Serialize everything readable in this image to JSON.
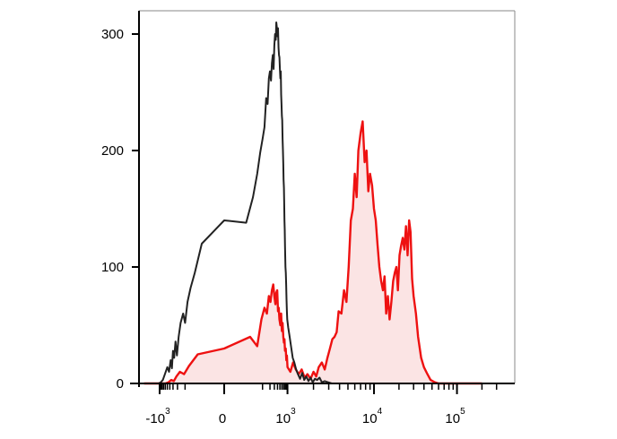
{
  "chart_data": {
    "type": "area",
    "title": "",
    "xlabel": "",
    "ylabel": "",
    "x_scale": "biexponential",
    "ylim": [
      0,
      320
    ],
    "grid": false,
    "legend": "none",
    "y_ticks": [
      {
        "value": 0,
        "label": "0"
      },
      {
        "value": 100,
        "label": "100"
      },
      {
        "value": 200,
        "label": "200"
      },
      {
        "value": 300,
        "label": "300"
      }
    ],
    "x_ticks": [
      {
        "value": -1000,
        "base": "-10",
        "exp": "3"
      },
      {
        "value": 0,
        "base": "0",
        "exp": ""
      },
      {
        "value": 1000,
        "base": "10",
        "exp": "3"
      },
      {
        "value": 10000,
        "base": "10",
        "exp": "4"
      },
      {
        "value": 100000,
        "base": "10",
        "exp": "5"
      }
    ],
    "series": [
      {
        "color": "#222222",
        "fill": "none",
        "x": [
          -4000,
          -2500,
          -1800,
          -1400,
          -1100,
          -900,
          -750,
          -620,
          -500,
          -430,
          -370,
          -330,
          -300,
          -270,
          -240,
          -210,
          -180,
          -150,
          -120,
          -100,
          -80,
          -60,
          -40,
          -20,
          0,
          20,
          40,
          60,
          80,
          100,
          120,
          140,
          160,
          180,
          200,
          220,
          240,
          260,
          280,
          300,
          320,
          340,
          360,
          380,
          400,
          420,
          440,
          460,
          480,
          500,
          520,
          540,
          560,
          580,
          600,
          620,
          640,
          660,
          680,
          700,
          720,
          740,
          760,
          780,
          800,
          830,
          860,
          890,
          920,
          950,
          980,
          1020,
          1060,
          1100,
          1150,
          1200,
          1260,
          1320,
          1400,
          1480,
          1560,
          1650,
          1750,
          1850,
          1960,
          2080,
          2200,
          2350,
          2500,
          2700,
          2950,
          3250,
          3600,
          4000,
          4600,
          5400,
          6500,
          8000,
          10000,
          15000,
          30000,
          200000
        ],
        "y": [
          0,
          0,
          0,
          0,
          0,
          1,
          3,
          8,
          14,
          10,
          20,
          13,
          28,
          22,
          36,
          24,
          40,
          52,
          60,
          52,
          70,
          82,
          95,
          120,
          140,
          138,
          160,
          180,
          198,
          210,
          220,
          245,
          240,
          262,
          268,
          260,
          275,
          282,
          270,
          290,
          300,
          295,
          310,
          305,
          298,
          305,
          288,
          282,
          280,
          270,
          262,
          268,
          248,
          240,
          230,
          226,
          210,
          200,
          188,
          175,
          168,
          155,
          140,
          132,
          118,
          100,
          95,
          85,
          72,
          62,
          55,
          48,
          40,
          32,
          22,
          18,
          12,
          8,
          4,
          9,
          3,
          6,
          2,
          5,
          1,
          4,
          3,
          5,
          1,
          2,
          1,
          0,
          0,
          0,
          0,
          0,
          0,
          0,
          0,
          0,
          0,
          0
        ]
      },
      {
        "color": "#ee1111",
        "fill": "#fbe4e4",
        "x": [
          -4000,
          -2500,
          -1600,
          -1100,
          -800,
          -600,
          -450,
          -350,
          -280,
          -220,
          -160,
          -110,
          -70,
          -30,
          0,
          30,
          60,
          90,
          120,
          150,
          180,
          210,
          240,
          270,
          300,
          330,
          360,
          390,
          420,
          450,
          480,
          520,
          560,
          600,
          640,
          680,
          720,
          760,
          800,
          850,
          900,
          950,
          1000,
          1080,
          1160,
          1250,
          1350,
          1460,
          1580,
          1700,
          1850,
          2000,
          2150,
          2300,
          2500,
          2700,
          2900,
          3100,
          3300,
          3500,
          3700,
          3900,
          4200,
          4500,
          4800,
          5100,
          5400,
          5700,
          6000,
          6300,
          6600,
          7000,
          7400,
          7800,
          8200,
          8600,
          9000,
          9500,
          10000,
          10500,
          11000,
          11600,
          12200,
          12800,
          13400,
          14000,
          14700,
          15400,
          16200,
          17000,
          17800,
          18600,
          19400,
          20300,
          21200,
          22200,
          23200,
          24300,
          25400,
          26500,
          27600,
          28800,
          30000,
          32000,
          34000,
          37000,
          40000,
          44000,
          48000,
          54000,
          60000,
          70000,
          90000,
          200000
        ],
        "y": [
          0,
          0,
          0,
          0,
          0,
          0,
          1,
          3,
          2,
          6,
          10,
          8,
          15,
          25,
          30,
          40,
          32,
          55,
          65,
          60,
          75,
          70,
          80,
          85,
          75,
          68,
          78,
          80,
          62,
          65,
          55,
          50,
          60,
          45,
          52,
          40,
          35,
          38,
          28,
          30,
          20,
          24,
          14,
          10,
          18,
          12,
          8,
          12,
          5,
          8,
          4,
          10,
          6,
          14,
          18,
          12,
          22,
          30,
          38,
          40,
          44,
          62,
          60,
          80,
          70,
          100,
          140,
          150,
          180,
          160,
          200,
          215,
          225,
          190,
          200,
          165,
          180,
          170,
          150,
          140,
          120,
          100,
          88,
          80,
          92,
          60,
          75,
          55,
          70,
          88,
          95,
          100,
          80,
          110,
          118,
          125,
          115,
          135,
          110,
          140,
          130,
          90,
          75,
          60,
          40,
          22,
          14,
          8,
          3,
          1,
          0,
          0,
          0,
          0
        ]
      }
    ]
  }
}
